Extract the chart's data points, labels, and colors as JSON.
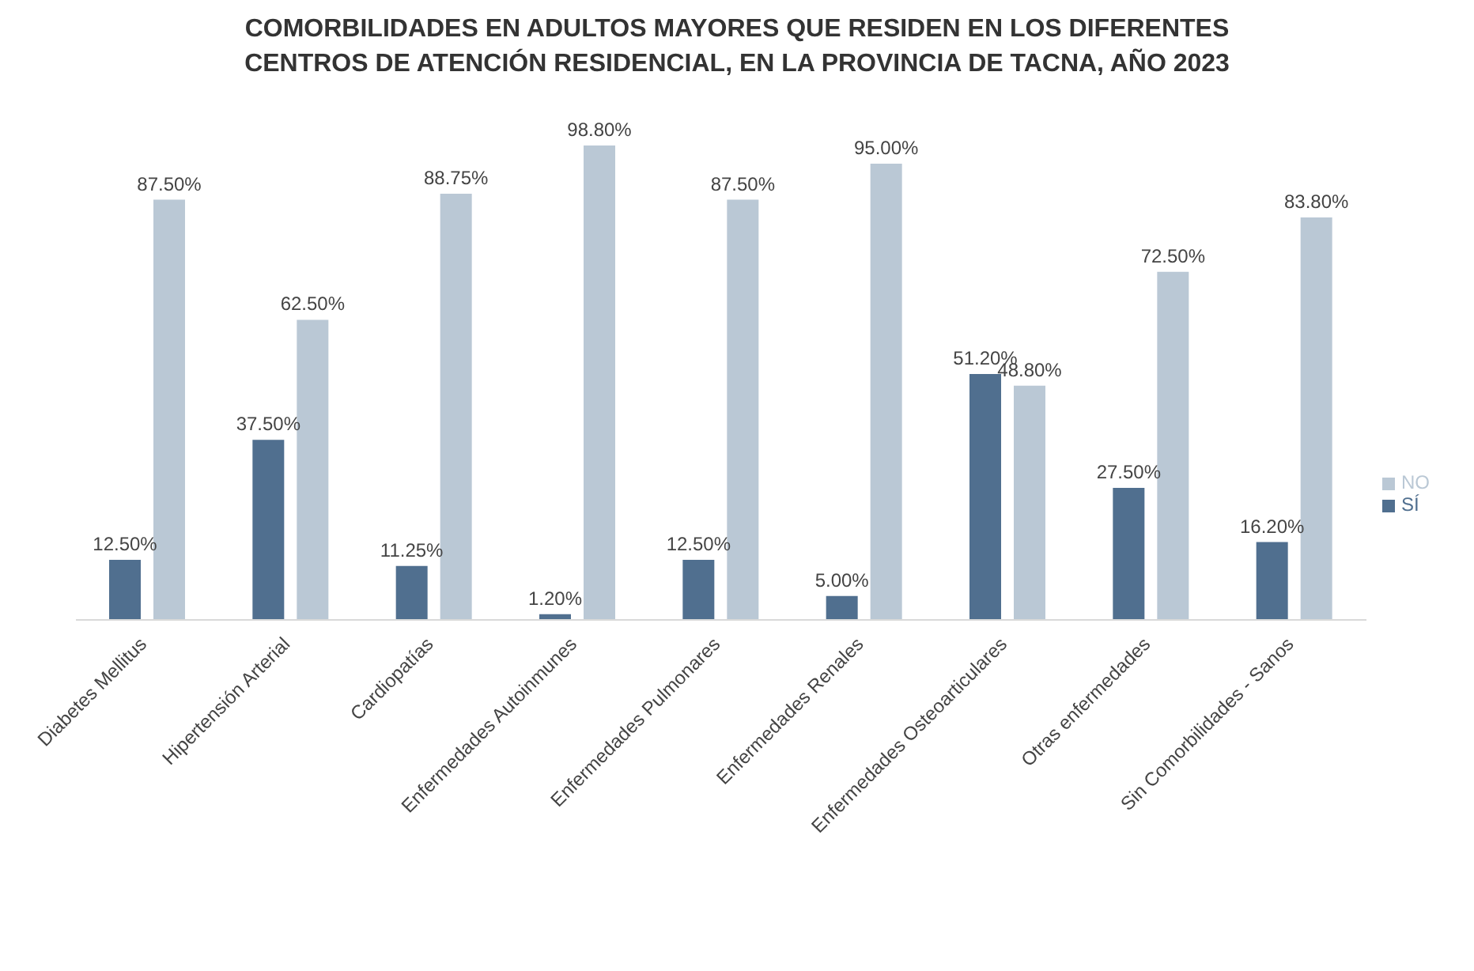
{
  "chart_data": {
    "type": "bar",
    "title": "COMORBILIDADES EN ADULTOS MAYORES QUE RESIDEN EN LOS DIFERENTES CENTROS DE ATENCIÓN RESIDENCIAL, EN LA PROVINCIA DE TACNA, AÑO 2023",
    "categories": [
      "Diabetes Mellitus",
      "Hipertensión Arterial",
      "Cardiopatías",
      "Enfermedades Autoinmunes",
      "Enfermedades Pulmonares",
      "Enfermedades Renales",
      "Enfermedades Osteoarticulares",
      "Otras enfermedades",
      "Sin Comorbilidades - Sanos"
    ],
    "series": [
      {
        "name": "SÍ",
        "color": "#506f8f",
        "values": [
          12.5,
          37.5,
          11.25,
          1.2,
          12.5,
          5,
          51.2,
          27.5,
          16.2
        ],
        "value_labels": [
          "12.50%",
          "37.50%",
          "11.25%",
          "1.20%",
          "12.50%",
          "5.00%",
          "51.20%",
          "27.50%",
          "16.20%"
        ]
      },
      {
        "name": "NO",
        "color": "#bac8d5",
        "values": [
          87.5,
          62.5,
          88.75,
          98.8,
          87.5,
          95,
          48.8,
          72.5,
          83.8
        ],
        "value_labels": [
          "87.50%",
          "62.50%",
          "88.75%",
          "98.80%",
          "87.50%",
          "95.00%",
          "48.80%",
          "72.50%",
          "83.80%"
        ]
      }
    ],
    "legend": "right",
    "grid": false
  }
}
